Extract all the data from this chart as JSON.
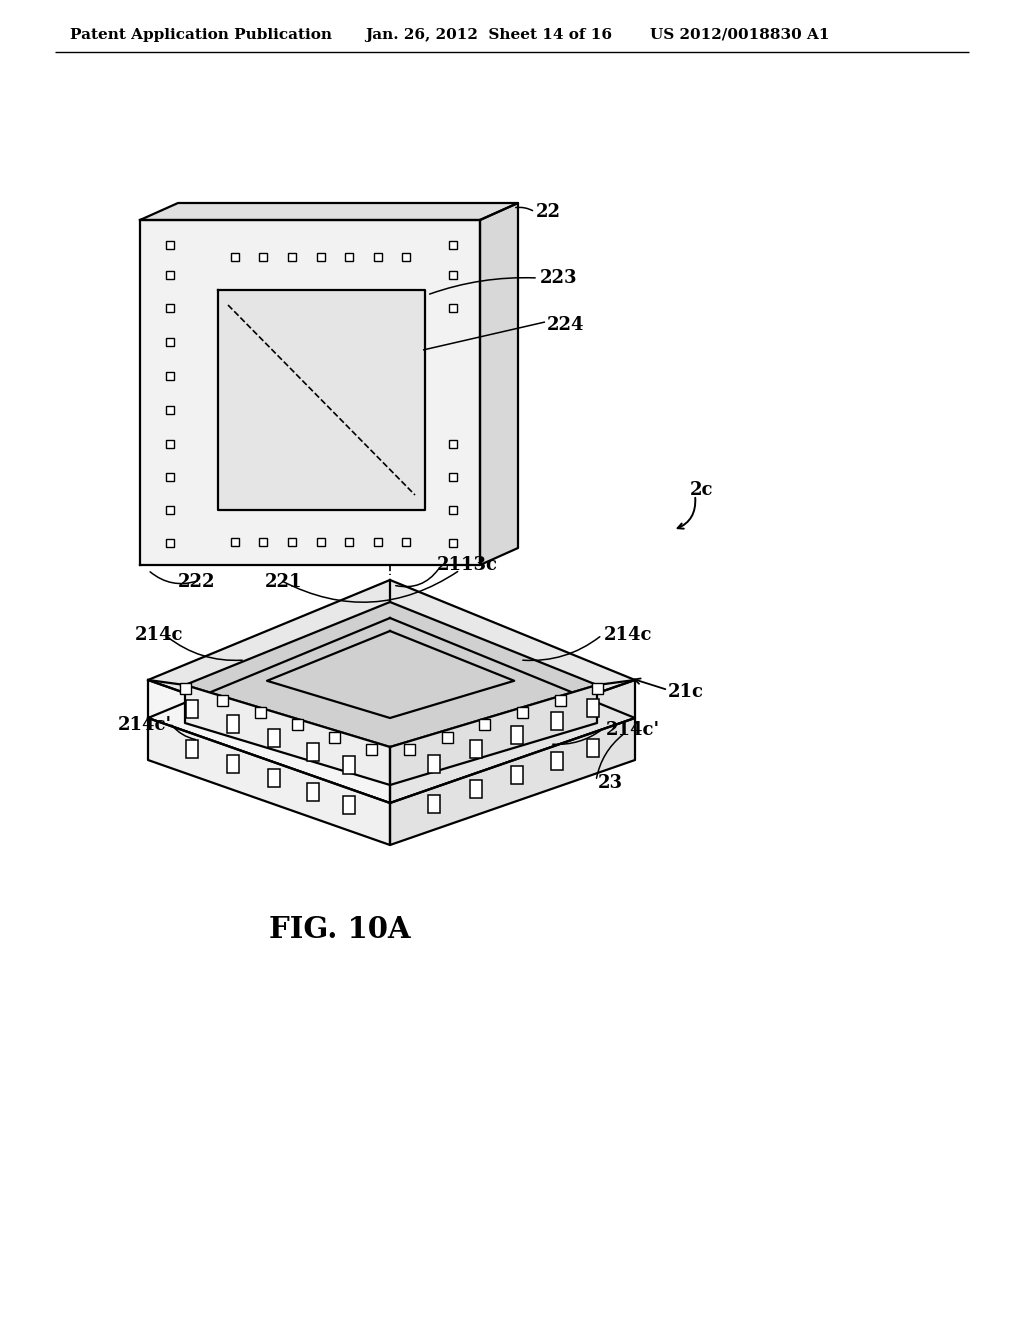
{
  "bg_color": "#ffffff",
  "line_color": "#000000",
  "header_left": "Patent Application Publication",
  "header_mid": "Jan. 26, 2012  Sheet 14 of 16",
  "header_right": "US 2012/0018830 A1",
  "fig_label": "FIG. 10A",
  "label_2c": "2c",
  "label_22": "22",
  "label_221": "221",
  "label_222": "222",
  "label_223": "223",
  "label_224": "224",
  "label_2113c": "2113c",
  "label_214c_tl": "214c",
  "label_214c_tr": "214c",
  "label_214c_bl": "214c'",
  "label_214c_br": "214c'",
  "label_21c": "21c",
  "label_23": "23",
  "header_fs": 11,
  "label_fs": 13
}
